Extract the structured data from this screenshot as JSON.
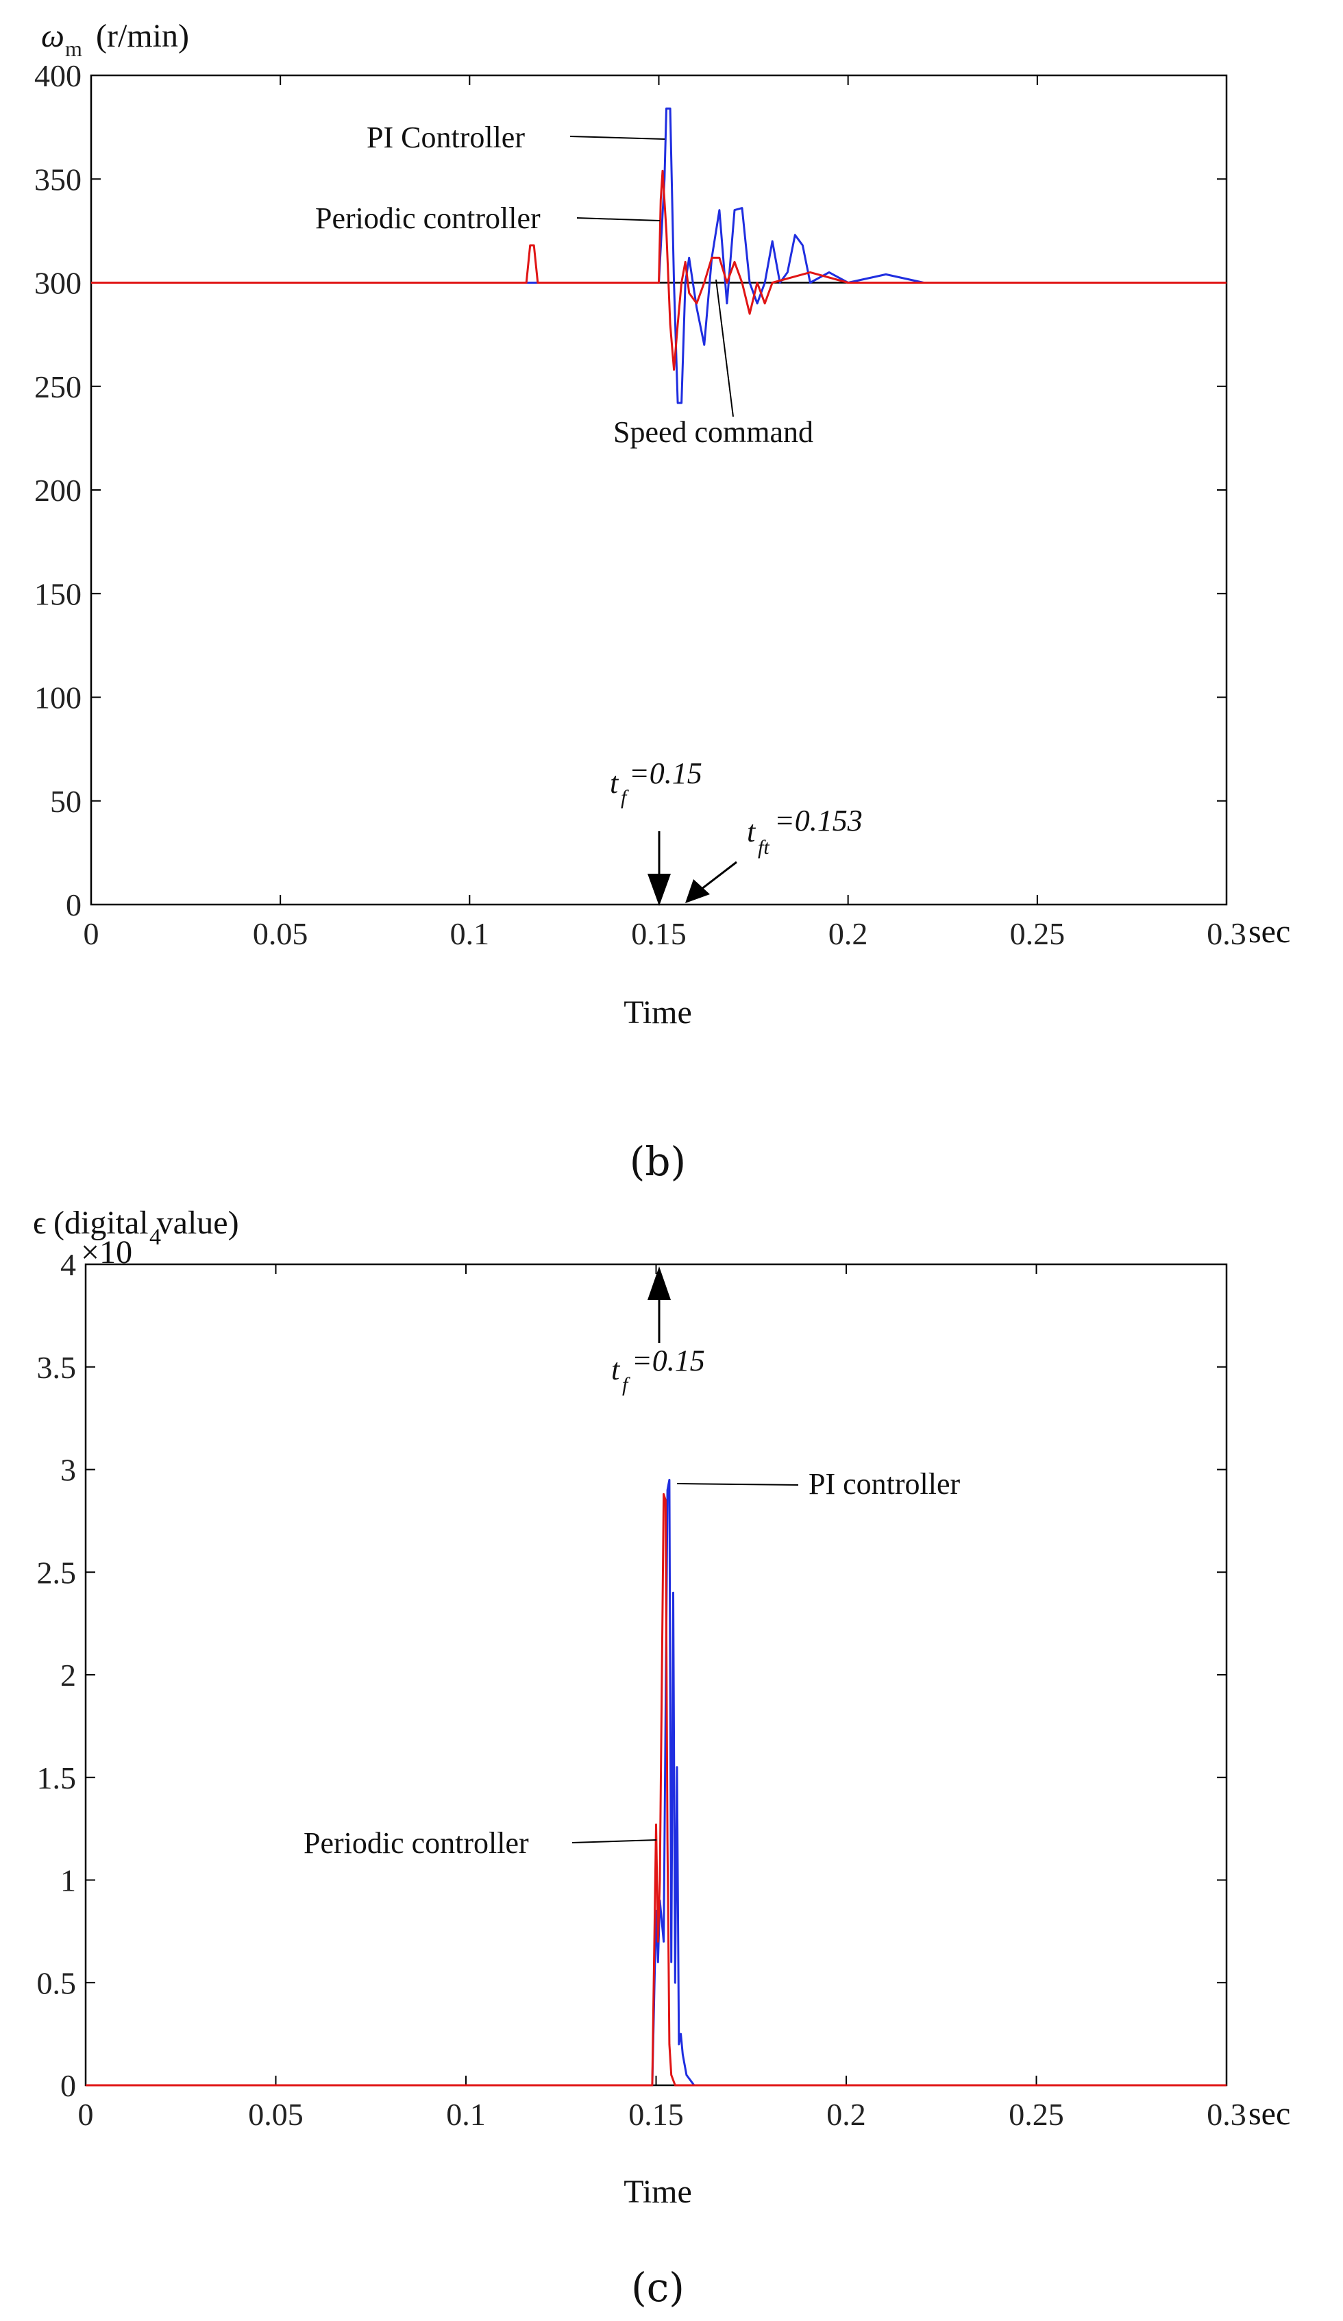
{
  "colors": {
    "pi": "#1f2ee0",
    "periodic": "#e01515",
    "command": "#000000",
    "axis": "#000000"
  },
  "chart_data": [
    {
      "type": "line",
      "ylabel_symbol": "ω",
      "ylabel_sub": "m",
      "ylabel_unit": "(r/min)",
      "xlabel": "Time",
      "x_unit": "sec",
      "caption": "(b)",
      "xlim": [
        0,
        0.3
      ],
      "ylim": [
        0,
        400
      ],
      "xticks": [
        "0",
        "0.05",
        "0.1",
        "0.15",
        "0.2",
        "0.25",
        "0.3"
      ],
      "yticks": [
        "0",
        "50",
        "100",
        "150",
        "200",
        "250",
        "300",
        "350",
        "400"
      ],
      "grid": false,
      "series": [
        {
          "name": "PI Controller",
          "color": "#1f2ee0",
          "x": [
            0,
            0.02,
            0.05,
            0.08,
            0.1,
            0.13,
            0.148,
            0.15,
            0.1515,
            0.152,
            0.153,
            0.154,
            0.155,
            0.156,
            0.157,
            0.158,
            0.16,
            0.162,
            0.164,
            0.166,
            0.168,
            0.17,
            0.172,
            0.174,
            0.176,
            0.178,
            0.18,
            0.182,
            0.184,
            0.186,
            0.188,
            0.19,
            0.195,
            0.2,
            0.21,
            0.22,
            0.25,
            0.28,
            0.3
          ],
          "y": [
            300,
            300,
            300,
            300,
            300,
            300,
            300,
            300,
            350,
            384,
            384,
            300,
            242,
            242,
            300,
            312,
            288,
            270,
            312,
            335,
            290,
            335,
            336,
            300,
            290,
            300,
            320,
            300,
            305,
            323,
            318,
            300,
            305,
            300,
            304,
            300,
            300,
            300,
            300
          ]
        },
        {
          "name": "Periodic controller",
          "color": "#e01515",
          "x": [
            0,
            0.02,
            0.05,
            0.08,
            0.1,
            0.115,
            0.116,
            0.117,
            0.118,
            0.13,
            0.148,
            0.15,
            0.1505,
            0.151,
            0.152,
            0.153,
            0.154,
            0.155,
            0.156,
            0.157,
            0.158,
            0.16,
            0.162,
            0.164,
            0.166,
            0.168,
            0.17,
            0.172,
            0.174,
            0.176,
            0.178,
            0.18,
            0.19,
            0.2,
            0.22,
            0.25,
            0.3
          ],
          "y": [
            300,
            300,
            300,
            300,
            300,
            300,
            318,
            318,
            300,
            300,
            300,
            300,
            340,
            354,
            325,
            280,
            258,
            280,
            300,
            310,
            295,
            290,
            300,
            312,
            312,
            300,
            310,
            300,
            285,
            300,
            290,
            300,
            305,
            300,
            300,
            300,
            300
          ]
        },
        {
          "name": "Speed command",
          "color": "#000000",
          "x": [
            0,
            0.3
          ],
          "y": [
            300,
            300
          ]
        }
      ],
      "annotations": [
        {
          "text": "PI Controller"
        },
        {
          "text": "Periodic controller"
        },
        {
          "text": "Speed command"
        },
        {
          "prefix": "t",
          "sub": "f",
          "suffix": "=0.15"
        },
        {
          "prefix": "t",
          "sub": "ft",
          "suffix": "=0.153"
        }
      ]
    },
    {
      "type": "line",
      "ylabel_symbol": "ϵ",
      "ylabel_unit": "(digital value)",
      "y_multiplier": "×10",
      "y_multiplier_exp": "4",
      "xlabel": "Time",
      "x_unit": "sec",
      "caption": "(c)",
      "xlim": [
        0,
        0.3
      ],
      "ylim": [
        0,
        4
      ],
      "xticks": [
        "0",
        "0.05",
        "0.1",
        "0.15",
        "0.2",
        "0.25",
        "0.3"
      ],
      "yticks": [
        "0",
        "0.5",
        "1",
        "1.5",
        "2",
        "2.5",
        "3",
        "3.5",
        "4"
      ],
      "grid": false,
      "series": [
        {
          "name": "PI controller",
          "color": "#1f2ee0",
          "x": [
            0,
            0.149,
            0.15,
            0.1505,
            0.151,
            0.152,
            0.153,
            0.1535,
            0.154,
            0.1545,
            0.155,
            0.1555,
            0.156,
            0.1565,
            0.157,
            0.158,
            0.16,
            0.3
          ],
          "y": [
            0,
            0,
            0.85,
            0.6,
            0.9,
            0.7,
            2.9,
            2.95,
            0.6,
            2.4,
            0.5,
            1.55,
            0.2,
            0.25,
            0.15,
            0.05,
            0,
            0
          ]
        },
        {
          "name": "Periodic controller",
          "color": "#e01515",
          "x": [
            0,
            0.149,
            0.15,
            0.1505,
            0.151,
            0.152,
            0.1525,
            0.153,
            0.1535,
            0.154,
            0.155,
            0.3
          ],
          "y": [
            0,
            0,
            1.27,
            0.7,
            1.0,
            2.88,
            2.85,
            1.2,
            0.2,
            0.05,
            0,
            0
          ]
        }
      ],
      "annotations": [
        {
          "text": "PI controller"
        },
        {
          "text": "Periodic controller"
        },
        {
          "prefix": "t",
          "sub": "f",
          "suffix": "=0.15"
        }
      ]
    }
  ]
}
